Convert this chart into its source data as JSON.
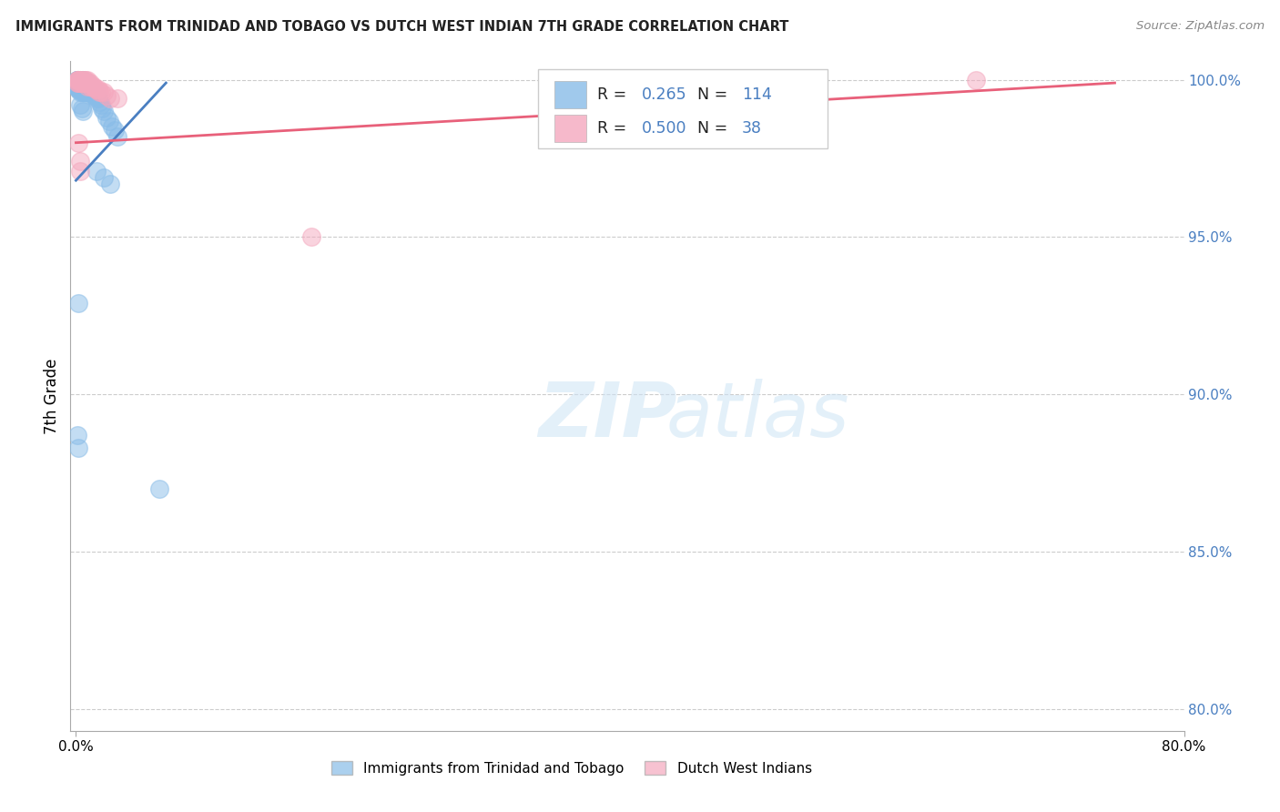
{
  "title": "IMMIGRANTS FROM TRINIDAD AND TOBAGO VS DUTCH WEST INDIAN 7TH GRADE CORRELATION CHART",
  "source": "Source: ZipAtlas.com",
  "ylabel": "7th Grade",
  "xlim": [
    -0.004,
    0.8
  ],
  "ylim": [
    0.793,
    1.006
  ],
  "yticks": [
    0.8,
    0.85,
    0.9,
    0.95,
    1.0
  ],
  "yticklabels_right": [
    "80.0%",
    "85.0%",
    "90.0%",
    "95.0%",
    "100.0%"
  ],
  "blue_R": "0.265",
  "blue_N": "114",
  "pink_R": "0.500",
  "pink_N": "38",
  "blue_color": "#88bce8",
  "pink_color": "#f4a8be",
  "blue_line_color": "#4a7fc1",
  "pink_line_color": "#e8607a",
  "blue_line_x": [
    0.0,
    0.065
  ],
  "blue_line_y": [
    0.968,
    0.999
  ],
  "pink_line_x": [
    0.0,
    0.75
  ],
  "pink_line_y": [
    0.98,
    0.999
  ],
  "blue_scatter_x": [
    0.001,
    0.001,
    0.001,
    0.001,
    0.001,
    0.001,
    0.001,
    0.001,
    0.001,
    0.001,
    0.002,
    0.002,
    0.002,
    0.002,
    0.002,
    0.002,
    0.002,
    0.002,
    0.002,
    0.003,
    0.003,
    0.003,
    0.003,
    0.003,
    0.003,
    0.003,
    0.003,
    0.004,
    0.004,
    0.004,
    0.004,
    0.004,
    0.004,
    0.004,
    0.005,
    0.005,
    0.005,
    0.005,
    0.005,
    0.005,
    0.006,
    0.006,
    0.006,
    0.006,
    0.006,
    0.007,
    0.007,
    0.007,
    0.007,
    0.008,
    0.008,
    0.008,
    0.008,
    0.009,
    0.009,
    0.009,
    0.01,
    0.01,
    0.01,
    0.011,
    0.011,
    0.012,
    0.012,
    0.013,
    0.013,
    0.014,
    0.014,
    0.015,
    0.015,
    0.016,
    0.017,
    0.018,
    0.019,
    0.02,
    0.022,
    0.024,
    0.026,
    0.028,
    0.03,
    0.003,
    0.004,
    0.005,
    0.015,
    0.02,
    0.025,
    0.002,
    0.06,
    0.001,
    0.002
  ],
  "blue_scatter_y": [
    1.0,
    1.0,
    1.0,
    1.0,
    1.0,
    0.999,
    0.999,
    0.999,
    0.998,
    0.998,
    1.0,
    1.0,
    1.0,
    0.999,
    0.999,
    0.998,
    0.998,
    0.997,
    0.997,
    1.0,
    1.0,
    0.999,
    0.999,
    0.998,
    0.998,
    0.997,
    0.996,
    1.0,
    0.999,
    0.999,
    0.998,
    0.997,
    0.997,
    0.996,
    1.0,
    0.999,
    0.999,
    0.998,
    0.997,
    0.996,
    0.999,
    0.999,
    0.998,
    0.997,
    0.996,
    0.999,
    0.998,
    0.997,
    0.996,
    0.999,
    0.998,
    0.997,
    0.996,
    0.998,
    0.997,
    0.996,
    0.998,
    0.997,
    0.996,
    0.997,
    0.996,
    0.997,
    0.996,
    0.996,
    0.995,
    0.996,
    0.995,
    0.995,
    0.994,
    0.994,
    0.993,
    0.992,
    0.991,
    0.99,
    0.988,
    0.987,
    0.985,
    0.984,
    0.982,
    0.992,
    0.991,
    0.99,
    0.971,
    0.969,
    0.967,
    0.929,
    0.87,
    0.887,
    0.883
  ],
  "pink_scatter_x": [
    0.001,
    0.001,
    0.001,
    0.002,
    0.002,
    0.002,
    0.003,
    0.003,
    0.004,
    0.004,
    0.005,
    0.005,
    0.006,
    0.006,
    0.007,
    0.007,
    0.008,
    0.008,
    0.009,
    0.01,
    0.01,
    0.011,
    0.012,
    0.013,
    0.014,
    0.015,
    0.016,
    0.017,
    0.018,
    0.02,
    0.022,
    0.025,
    0.03,
    0.002,
    0.003,
    0.003,
    0.17,
    0.65
  ],
  "pink_scatter_y": [
    1.0,
    1.0,
    0.999,
    1.0,
    1.0,
    0.999,
    1.0,
    0.999,
    1.0,
    0.999,
    1.0,
    0.999,
    1.0,
    0.999,
    1.0,
    0.999,
    1.0,
    0.998,
    0.999,
    0.999,
    0.998,
    0.998,
    0.998,
    0.998,
    0.997,
    0.997,
    0.997,
    0.996,
    0.996,
    0.996,
    0.995,
    0.994,
    0.994,
    0.98,
    0.974,
    0.971,
    0.95,
    1.0
  ],
  "watermark_text": "ZIPatlas",
  "legend_label_blue": "Immigrants from Trinidad and Tobago",
  "legend_label_pink": "Dutch West Indians"
}
